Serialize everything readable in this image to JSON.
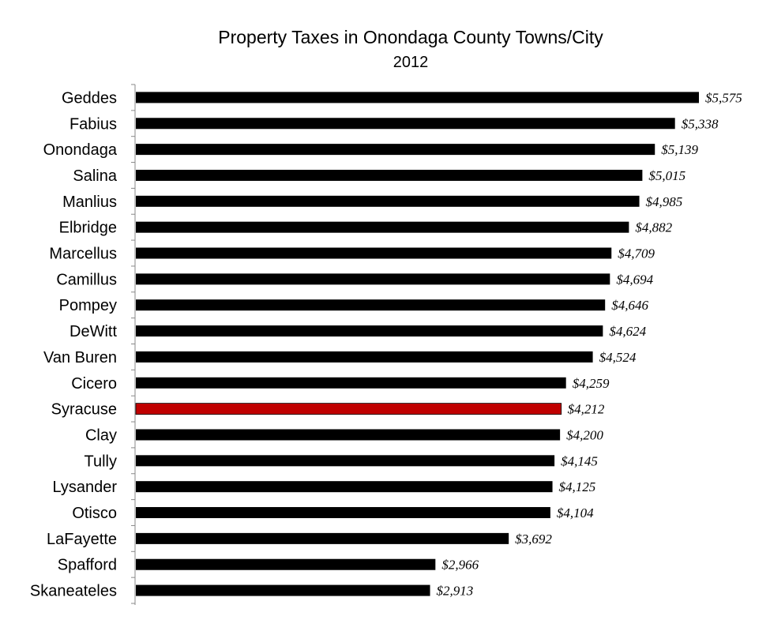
{
  "chart_data": {
    "type": "bar",
    "orientation": "horizontal",
    "title": "Property Taxes in Onondaga County Towns/City",
    "subtitle": "2012",
    "xlabel": "",
    "ylabel": "",
    "xlim": [
      0,
      5575
    ],
    "grid": false,
    "legend": "none",
    "categories": [
      "Geddes",
      "Fabius",
      "Onondaga",
      "Salina",
      "Manlius",
      "Elbridge",
      "Marcellus",
      "Camillus",
      "Pompey",
      "DeWitt",
      "Van Buren",
      "Cicero",
      "Syracuse",
      "Clay",
      "Tully",
      "Lysander",
      "Otisco",
      "LaFayette",
      "Spafford",
      "Skaneateles"
    ],
    "values": [
      5575,
      5338,
      5139,
      5015,
      4985,
      4882,
      4709,
      4694,
      4646,
      4624,
      4524,
      4259,
      4212,
      4200,
      4145,
      4125,
      4104,
      3692,
      2966,
      2913
    ],
    "value_labels": [
      "$5,575",
      "$5,338",
      "$5,139",
      "$5,015",
      "$4,985",
      "$4,882",
      "$4,709",
      "$4,694",
      "$4,646",
      "$4,624",
      "$4,524",
      "$4,259",
      "$4,212",
      "$4,200",
      "$4,145",
      "$4,125",
      "$4,104",
      "$3,692",
      "$2,966",
      "$2,913"
    ],
    "bar_color": "#000000",
    "highlight": {
      "category": "Syracuse",
      "color": "#C00000"
    }
  }
}
